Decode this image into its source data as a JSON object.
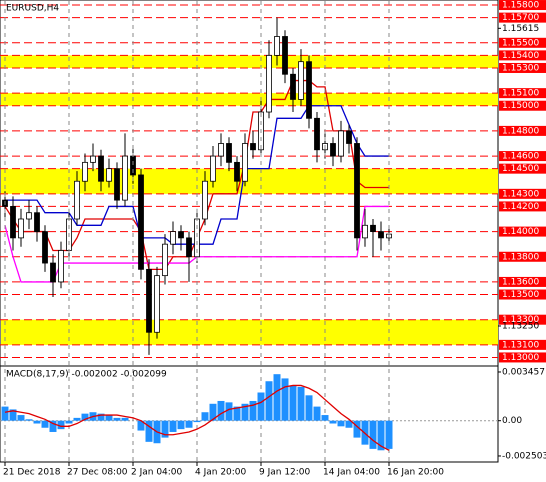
{
  "chart_data": [
    {
      "type": "candlestick",
      "title": "EURUSD,H4",
      "ylim": [
        1.1294,
        1.1584
      ],
      "yticks": [
        {
          "value": 1.15615,
          "label": "1.15615"
        },
        {
          "value": 1.1325,
          "label": "1.13250"
        }
      ],
      "levels": {
        "color": "#ff0000",
        "ticks": [
          {
            "value": 1.158,
            "label": "1.15800"
          },
          {
            "value": 1.157,
            "label": "1.15700"
          },
          {
            "value": 1.155,
            "label": "1.15500"
          },
          {
            "value": 1.154,
            "label": "1.15400"
          },
          {
            "value": 1.153,
            "label": "1.15300"
          },
          {
            "value": 1.151,
            "label": "1.15100"
          },
          {
            "value": 1.15,
            "label": "1.15000"
          },
          {
            "value": 1.148,
            "label": "1.14800"
          },
          {
            "value": 1.146,
            "label": "1.14600"
          },
          {
            "value": 1.145,
            "label": "1.14500"
          },
          {
            "value": 1.143,
            "label": "1.14300"
          },
          {
            "value": 1.142,
            "label": "1.14200"
          },
          {
            "value": 1.14,
            "label": "1.14000"
          },
          {
            "value": 1.138,
            "label": "1.13800"
          },
          {
            "value": 1.136,
            "label": "1.13600"
          },
          {
            "value": 1.135,
            "label": "1.13500"
          },
          {
            "value": 1.133,
            "label": "1.13300"
          },
          {
            "value": 1.131,
            "label": "1.13100"
          },
          {
            "value": 1.13,
            "label": "1.13000"
          }
        ]
      },
      "zones": {
        "color": "#ffff00",
        "ranges": [
          [
            1.153,
            1.154
          ],
          [
            1.15,
            1.151
          ],
          [
            1.143,
            1.145
          ],
          [
            1.131,
            1.133
          ]
        ]
      },
      "up_color": "#ffffff",
      "down_color": "#000000",
      "ohlc": [
        [
          1.1425,
          1.1432,
          1.141,
          1.142
        ],
        [
          1.142,
          1.1428,
          1.1385,
          1.1395
        ],
        [
          1.1395,
          1.1418,
          1.1388,
          1.141
        ],
        [
          1.141,
          1.1425,
          1.1402,
          1.1415
        ],
        [
          1.1415,
          1.142,
          1.1392,
          1.14
        ],
        [
          1.14,
          1.1405,
          1.1368,
          1.1375
        ],
        [
          1.1375,
          1.1382,
          1.1348,
          1.136
        ],
        [
          1.136,
          1.1392,
          1.1355,
          1.1385
        ],
        [
          1.1385,
          1.1418,
          1.138,
          1.141
        ],
        [
          1.141,
          1.1448,
          1.1405,
          1.144
        ],
        [
          1.144,
          1.1462,
          1.1432,
          1.1455
        ],
        [
          1.1455,
          1.147,
          1.1448,
          1.146
        ],
        [
          1.146,
          1.1465,
          1.1432,
          1.144
        ],
        [
          1.144,
          1.1458,
          1.1435,
          1.145
        ],
        [
          1.145,
          1.1455,
          1.1418,
          1.1425
        ],
        [
          1.1425,
          1.1478,
          1.142,
          1.146
        ],
        [
          1.146,
          1.1466,
          1.1438,
          1.1445
        ],
        [
          1.1445,
          1.145,
          1.1362,
          1.137
        ],
        [
          1.137,
          1.1378,
          1.1302,
          1.132
        ],
        [
          1.132,
          1.1372,
          1.1315,
          1.1365
        ],
        [
          1.1365,
          1.1398,
          1.1358,
          1.139
        ],
        [
          1.139,
          1.1408,
          1.1382,
          1.14
        ],
        [
          1.14,
          1.1405,
          1.1385,
          1.1395
        ],
        [
          1.1395,
          1.14,
          1.136,
          1.138
        ],
        [
          1.138,
          1.1418,
          1.1375,
          1.141
        ],
        [
          1.141,
          1.1448,
          1.1405,
          1.144
        ],
        [
          1.144,
          1.1468,
          1.1435,
          1.146
        ],
        [
          1.146,
          1.1478,
          1.1452,
          1.147
        ],
        [
          1.147,
          1.1475,
          1.1448,
          1.1455
        ],
        [
          1.1455,
          1.146,
          1.1432,
          1.144
        ],
        [
          1.144,
          1.1478,
          1.1436,
          1.147
        ],
        [
          1.147,
          1.148,
          1.1458,
          1.1465
        ],
        [
          1.1465,
          1.1505,
          1.146,
          1.1495
        ],
        [
          1.1495,
          1.1552,
          1.149,
          1.154
        ],
        [
          1.154,
          1.157,
          1.1532,
          1.1555
        ],
        [
          1.1555,
          1.156,
          1.1518,
          1.1525
        ],
        [
          1.1525,
          1.153,
          1.1495,
          1.1505
        ],
        [
          1.1505,
          1.1545,
          1.15,
          1.1535
        ],
        [
          1.1535,
          1.154,
          1.1482,
          1.149
        ],
        [
          1.149,
          1.1495,
          1.1455,
          1.1465
        ],
        [
          1.1465,
          1.1478,
          1.1458,
          1.147
        ],
        [
          1.147,
          1.1475,
          1.1452,
          1.146
        ],
        [
          1.146,
          1.1488,
          1.1455,
          1.148
        ],
        [
          1.148,
          1.1485,
          1.1462,
          1.147
        ],
        [
          1.147,
          1.1475,
          1.1385,
          1.1395
        ],
        [
          1.1395,
          1.1418,
          1.1388,
          1.1405
        ],
        [
          1.1405,
          1.141,
          1.138,
          1.14
        ],
        [
          1.14,
          1.1408,
          1.1385,
          1.1395
        ],
        [
          1.1395,
          1.1405,
          1.139,
          1.1398
        ]
      ],
      "lines": [
        {
          "color": "#e00000",
          "values": [
            1.142,
            1.141,
            1.14,
            1.14,
            1.14,
            1.14,
            1.1385,
            1.1385,
            1.1385,
            1.1395,
            1.141,
            1.141,
            1.141,
            1.141,
            1.141,
            1.141,
            1.141,
            1.14,
            1.137,
            1.137,
            1.137,
            1.138,
            1.138,
            1.138,
            1.1395,
            1.141,
            1.143,
            1.143,
            1.143,
            1.143,
            1.1455,
            1.1495,
            1.1495,
            1.1505,
            1.1505,
            1.1505,
            1.152,
            1.152,
            1.152,
            1.1515,
            1.1515,
            1.148,
            1.148,
            1.148,
            1.144,
            1.1435,
            1.1435,
            1.1435,
            1.1435
          ]
        },
        {
          "color": "#0000cc",
          "values": [
            1.1425,
            1.1425,
            1.1425,
            1.1425,
            1.1425,
            1.1415,
            1.1415,
            1.1415,
            1.1415,
            1.1405,
            1.1405,
            1.1405,
            1.1405,
            1.142,
            1.142,
            1.142,
            1.142,
            1.1395,
            1.1395,
            1.1395,
            1.1395,
            1.139,
            1.139,
            1.139,
            1.139,
            1.139,
            1.139,
            1.141,
            1.141,
            1.141,
            1.145,
            1.145,
            1.145,
            1.145,
            1.149,
            1.149,
            1.149,
            1.149,
            1.15,
            1.15,
            1.15,
            1.15,
            1.15,
            1.1485,
            1.147,
            1.146,
            1.146,
            1.146,
            1.146
          ]
        },
        {
          "color": "#ff00ff",
          "values": [
            1.1405,
            1.138,
            1.136,
            1.136,
            1.136,
            1.136,
            1.136,
            1.1375,
            1.1375,
            1.1375,
            1.1375,
            1.1375,
            1.1375,
            1.1375,
            1.1375,
            1.1375,
            1.1375,
            1.1375,
            1.1375,
            1.1375,
            1.1375,
            1.1375,
            1.1375,
            1.1375,
            1.138,
            1.138,
            1.138,
            1.138,
            1.138,
            1.138,
            1.138,
            1.138,
            1.138,
            1.138,
            1.138,
            1.138,
            1.138,
            1.138,
            1.138,
            1.138,
            1.138,
            1.138,
            1.138,
            1.138,
            1.138,
            1.142,
            1.142,
            1.142,
            1.142
          ]
        }
      ]
    },
    {
      "type": "macd",
      "title": "MACD(8,17,9) -0.002002 -0.002099",
      "ylim": [
        -0.00286,
        0.00381
      ],
      "yticks": [
        0.003457,
        {
          "value": 0,
          "label": "0.00"
        },
        -0.002503
      ],
      "color": "#1e90ff",
      "categories": [
        "21 Dec 2018",
        null,
        null,
        null,
        null,
        null,
        null,
        null,
        "27 Dec 08:00",
        null,
        null,
        null,
        null,
        null,
        null,
        null,
        "2 Jan 04:00",
        null,
        null,
        null,
        null,
        null,
        null,
        null,
        "4 Jan 20:00",
        null,
        null,
        null,
        null,
        null,
        null,
        null,
        "9 Jan 12:00",
        null,
        null,
        null,
        null,
        null,
        null,
        null,
        "14 Jan 04:00",
        null,
        null,
        null,
        null,
        null,
        null,
        null,
        "16 Jan 20:00"
      ],
      "values": [
        0.001,
        0.0008,
        0.0004,
        0.0001,
        -0.0002,
        -0.0005,
        -0.0008,
        -0.0006,
        -0.0002,
        0.0002,
        0.0005,
        0.0006,
        0.0005,
        0.0004,
        0.0002,
        0.0002,
        0.0,
        -0.0007,
        -0.0015,
        -0.0016,
        -0.0012,
        -0.0008,
        -0.0006,
        -0.0005,
        -0.0001,
        0.0006,
        0.0012,
        0.0014,
        0.0013,
        0.001,
        0.0012,
        0.0014,
        0.002,
        0.0028,
        0.0033,
        0.003,
        0.0025,
        0.0024,
        0.0018,
        0.001,
        0.0004,
        -0.0002,
        -0.0004,
        -0.0005,
        -0.0012,
        -0.0017,
        -0.002,
        -0.0021,
        -0.002
      ],
      "signal": {
        "color": "#e00000",
        "values": [
          0.0006,
          0.0007,
          0.0006,
          0.0005,
          0.0003,
          0.0001,
          -0.0002,
          -0.0004,
          -0.0004,
          -0.0002,
          0.0001,
          0.0003,
          0.0004,
          0.0004,
          0.0004,
          0.0003,
          0.0002,
          0.0,
          -0.0004,
          -0.0008,
          -0.001,
          -0.001,
          -0.0009,
          -0.0008,
          -0.0006,
          -0.0003,
          0.0001,
          0.0005,
          0.0008,
          0.0009,
          0.001,
          0.0011,
          0.0013,
          0.0017,
          0.0021,
          0.0024,
          0.0025,
          0.0025,
          0.0023,
          0.002,
          0.0015,
          0.001,
          0.0005,
          0.0001,
          -0.0004,
          -0.0009,
          -0.0014,
          -0.0018,
          -0.0021
        ]
      }
    }
  ]
}
